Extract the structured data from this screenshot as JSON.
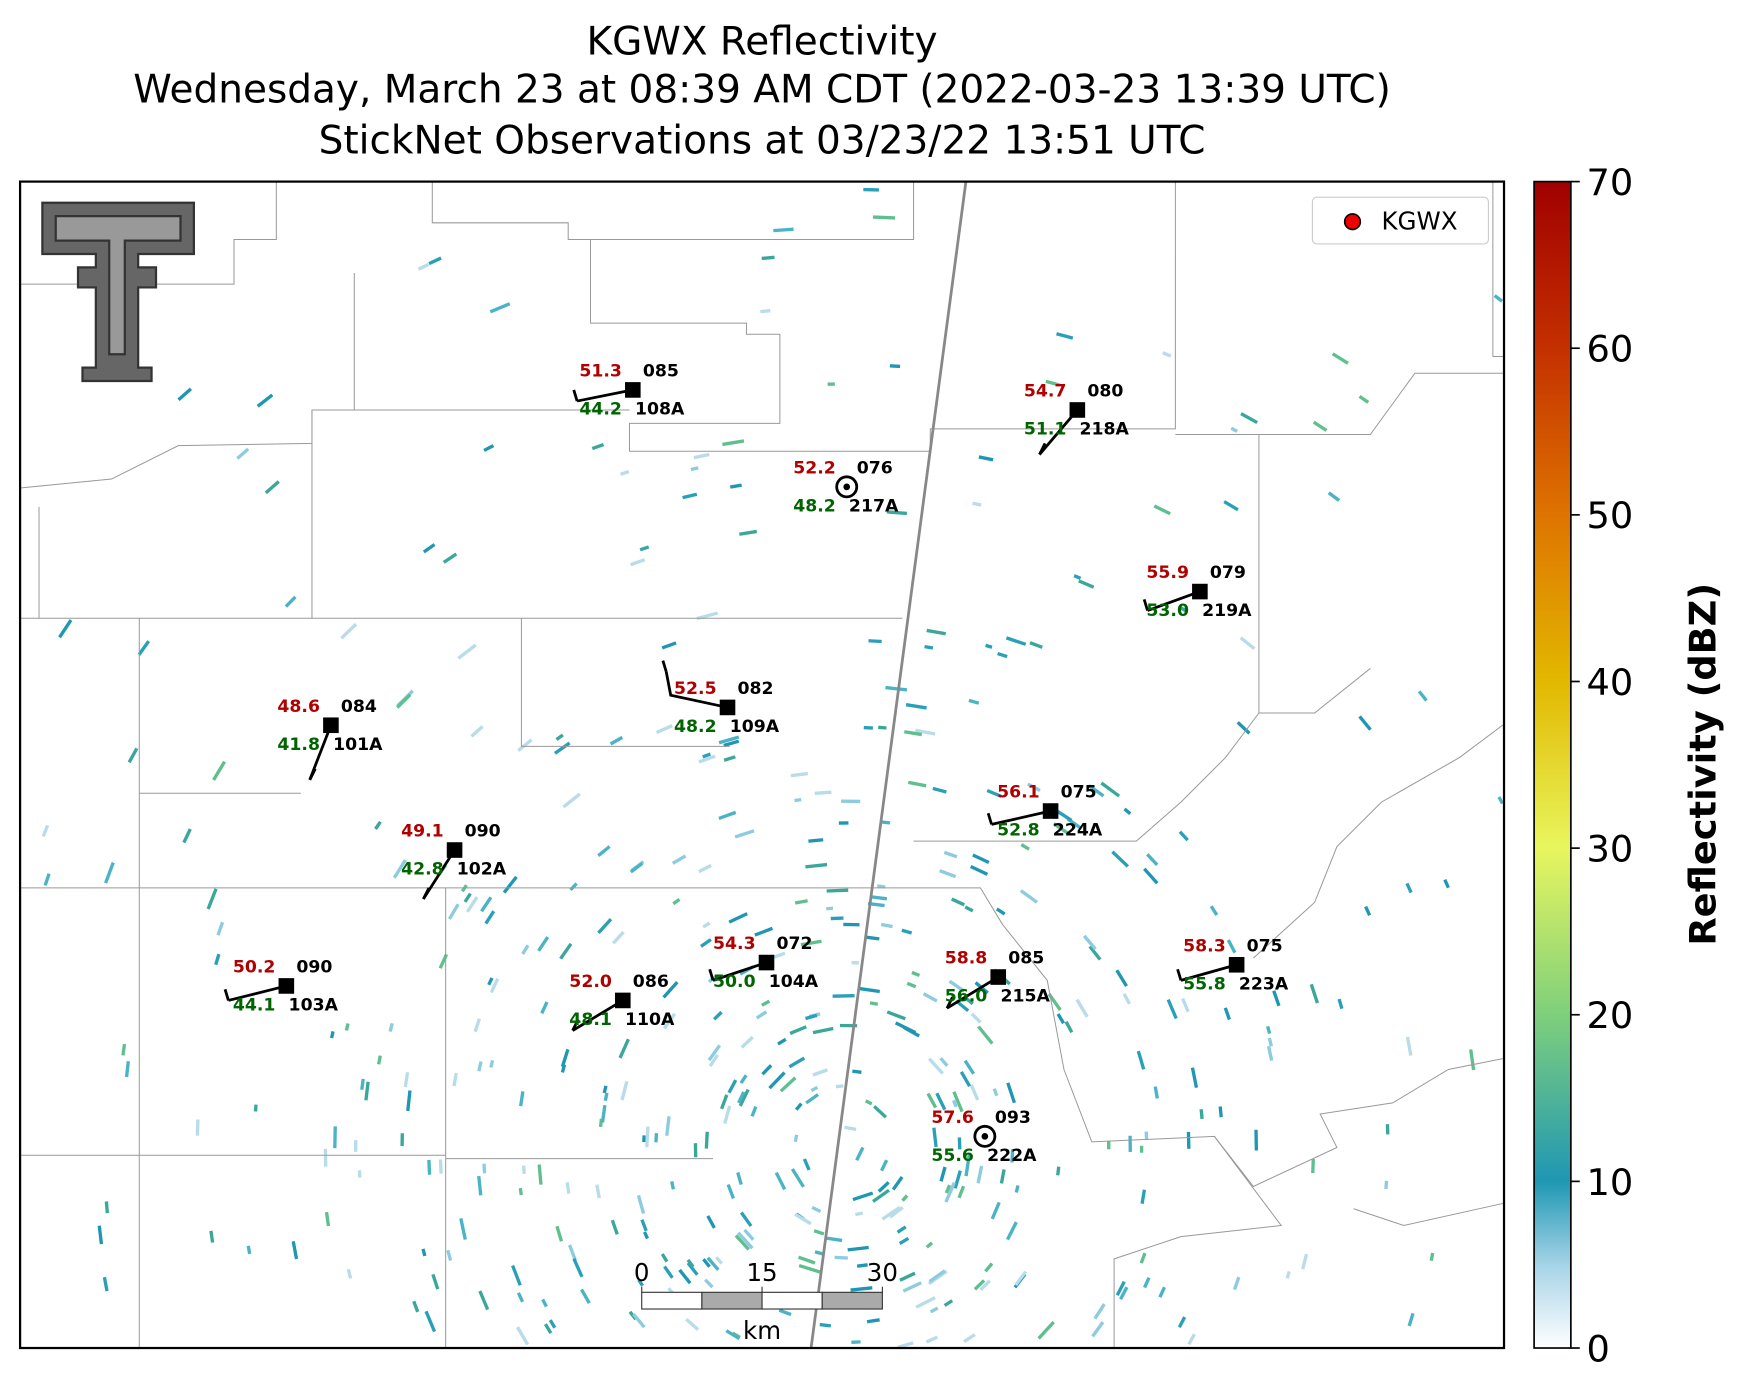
{
  "title_lines": [
    "KGWX Reflectivity",
    "Wednesday, March 23 at 08:39 AM CDT (2022-03-23 13:39 UTC)",
    "StickNet Observations at 03/23/22 13:51 UTC"
  ],
  "legend": {
    "label": "KGWX"
  },
  "colorbar": {
    "label": "Reflectivity (dBZ)",
    "lim": [
      0,
      70
    ],
    "ticks": [
      0,
      10,
      20,
      30,
      40,
      50,
      60,
      70
    ]
  },
  "scale_bar": {
    "ticks": [
      0,
      15,
      30
    ],
    "unit": "km"
  },
  "stations": [
    {
      "id": "108A",
      "temperature": "51.3",
      "dewpoint": "44.2",
      "value": "085"
    },
    {
      "id": "217A",
      "temperature": "52.2",
      "dewpoint": "48.2",
      "value": "076"
    },
    {
      "id": "218A",
      "temperature": "54.7",
      "dewpoint": "51.1",
      "value": "080"
    },
    {
      "id": "219A",
      "temperature": "55.9",
      "dewpoint": "53.0",
      "value": "079"
    },
    {
      "id": "101A",
      "temperature": "48.6",
      "dewpoint": "41.8",
      "value": "084"
    },
    {
      "id": "109A",
      "temperature": "52.5",
      "dewpoint": "48.2",
      "value": "082"
    },
    {
      "id": "224A",
      "temperature": "56.1",
      "dewpoint": "52.8",
      "value": "075"
    },
    {
      "id": "102A",
      "temperature": "49.1",
      "dewpoint": "42.8",
      "value": "090"
    },
    {
      "id": "103A",
      "temperature": "50.2",
      "dewpoint": "44.1",
      "value": "090"
    },
    {
      "id": "110A",
      "temperature": "52.0",
      "dewpoint": "48.1",
      "value": "086"
    },
    {
      "id": "104A",
      "temperature": "54.3",
      "dewpoint": "50.0",
      "value": "072"
    },
    {
      "id": "215A",
      "temperature": "58.8",
      "dewpoint": "56.0",
      "value": "085"
    },
    {
      "id": "223A",
      "temperature": "58.3",
      "dewpoint": "55.8",
      "value": "075"
    },
    {
      "id": "222A",
      "temperature": "57.6",
      "dewpoint": "55.6",
      "value": "093"
    }
  ]
}
